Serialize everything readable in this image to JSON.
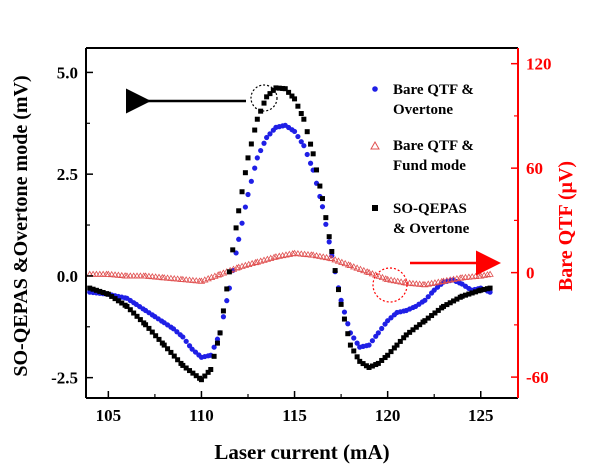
{
  "chart_data": {
    "type": "scatter",
    "xlabel": "Laser current (mA)",
    "ylabel_left": "SO-QEPAS &Overtone mode (mV)",
    "ylabel_right": "Bare QTF (μV)",
    "xlim": [
      103.8,
      127.0
    ],
    "ylim_left": [
      -3.0,
      5.6
    ],
    "ylim_right": [
      -72,
      129
    ],
    "x_ticks": [
      "105",
      "110",
      "115",
      "120",
      "125"
    ],
    "y_ticks_left": [
      "5.0",
      "2.5",
      "0.0",
      "-2.5"
    ],
    "y_ticks_right": [
      "120",
      "60",
      "0",
      "-60"
    ],
    "legend": {
      "placement": "top-right",
      "entries": [
        {
          "line1": "Bare QTF &",
          "line2": "Overtone",
          "color": "#1f1fe6",
          "marker": "circle"
        },
        {
          "line1": "Bare QTF &",
          "line2": "Fund mode",
          "color": "#e05050",
          "marker": "triangle-open"
        },
        {
          "line1": "SO-QEPAS",
          "line2": "& Overtone",
          "color": "#000000",
          "marker": "square"
        }
      ]
    },
    "colors": {
      "right_axis": "#ff0000",
      "left_axis": "#000000"
    },
    "series": [
      {
        "name": "Bare QTF & Overtone",
        "axis": "left",
        "color": "#1f1fe6",
        "x": [
          104,
          105,
          106,
          106.5,
          107,
          107.5,
          108,
          108.5,
          109,
          109.5,
          110,
          110.5,
          111,
          111.5,
          112,
          112.5,
          113,
          113.5,
          114,
          114.5,
          115,
          115.5,
          116,
          116.5,
          117,
          117.5,
          118,
          118.5,
          119,
          119.5,
          120,
          120.5,
          121,
          121.5,
          122,
          122.5,
          123,
          123.5,
          124,
          124.5,
          125,
          125.5
        ],
        "y": [
          -0.4,
          -0.45,
          -0.55,
          -0.7,
          -0.85,
          -1.0,
          -1.15,
          -1.3,
          -1.5,
          -1.8,
          -2.0,
          -1.95,
          -1.4,
          -0.3,
          0.9,
          2.0,
          2.9,
          3.4,
          3.65,
          3.7,
          3.55,
          3.2,
          2.6,
          1.7,
          0.5,
          -0.6,
          -1.4,
          -1.75,
          -1.7,
          -1.4,
          -1.1,
          -0.9,
          -0.85,
          -0.75,
          -0.6,
          -0.35,
          -0.15,
          -0.1,
          -0.2,
          -0.35,
          -0.3,
          -0.4
        ]
      },
      {
        "name": "Bare QTF & Fund mode",
        "axis": "right",
        "color": "#e05050",
        "x": [
          104,
          105,
          106,
          107,
          108,
          109,
          110,
          111,
          112,
          113,
          114,
          115,
          116,
          117,
          118,
          119,
          120,
          121,
          122,
          123,
          124,
          125,
          125.5
        ],
        "y": [
          -1,
          -1,
          -2,
          -2,
          -3,
          -4,
          -5,
          -1,
          3,
          6,
          9,
          11,
          10,
          8,
          4,
          0,
          -4,
          -6,
          -7,
          -5,
          -3,
          -2,
          -1
        ]
      },
      {
        "name": "SO-QEPAS & Overtone",
        "axis": "left",
        "color": "#000000",
        "x": [
          104,
          105,
          106,
          107,
          108,
          109,
          110,
          110.5,
          111,
          111.5,
          112,
          112.5,
          113,
          113.5,
          114,
          114.5,
          115,
          115.5,
          116,
          116.5,
          117,
          117.5,
          118,
          118.5,
          119,
          119.5,
          120,
          120.5,
          121,
          122,
          123,
          124,
          125,
          125.5
        ],
        "y": [
          -0.3,
          -0.45,
          -0.75,
          -1.2,
          -1.7,
          -2.2,
          -2.55,
          -2.3,
          -1.4,
          0.1,
          1.6,
          2.9,
          3.85,
          4.4,
          4.62,
          4.6,
          4.35,
          3.85,
          3.0,
          1.9,
          0.6,
          -0.7,
          -1.7,
          -2.1,
          -2.25,
          -2.15,
          -1.95,
          -1.7,
          -1.45,
          -1.1,
          -0.75,
          -0.5,
          -0.35,
          -0.3
        ]
      }
    ]
  }
}
